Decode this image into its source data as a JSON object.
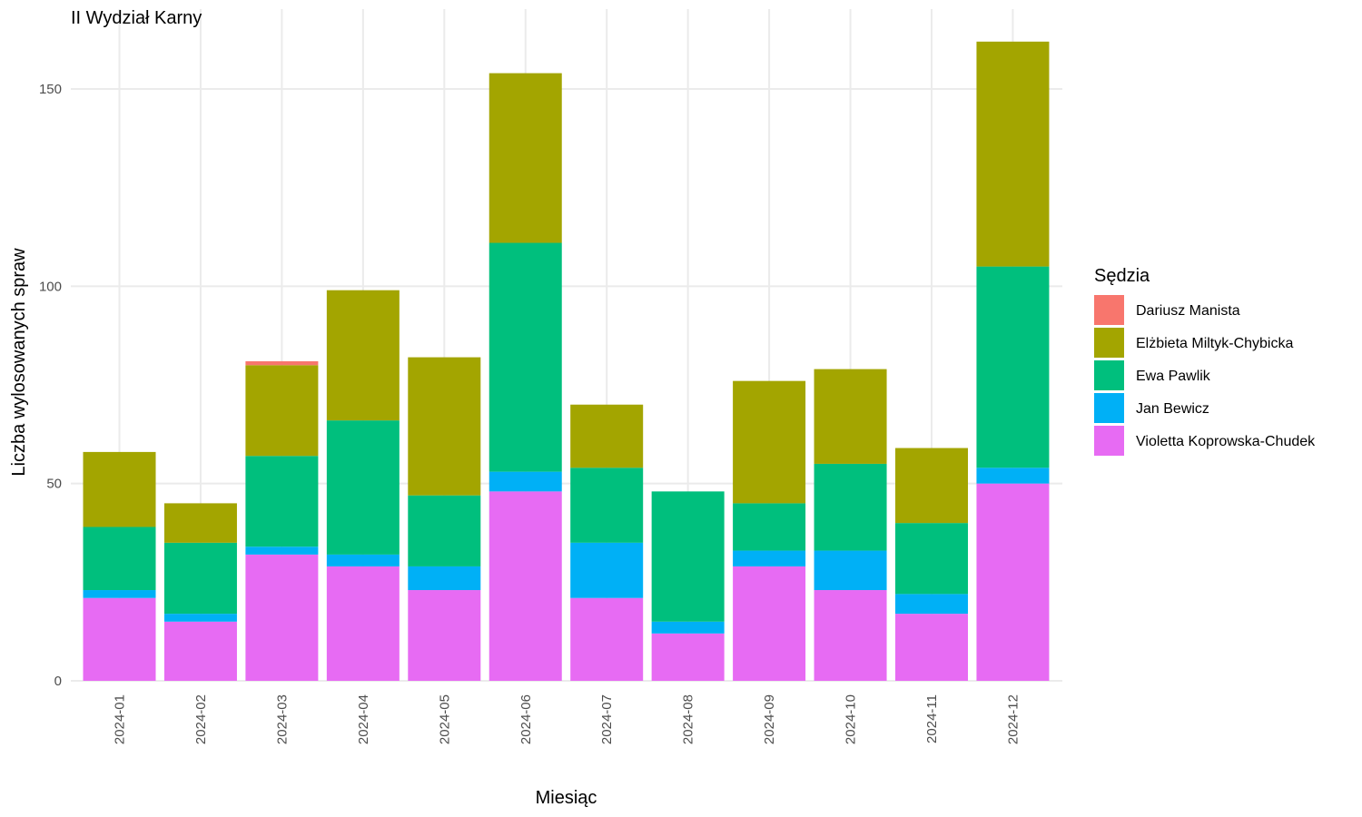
{
  "chart_data": {
    "type": "bar",
    "stacked": true,
    "title": "II Wydział Karny",
    "xlabel": "Miesiąc",
    "ylabel": "Liczba wylosowanych spraw",
    "ylim": [
      0,
      165
    ],
    "y_ticks": [
      0,
      50,
      100,
      150
    ],
    "grid": true,
    "legend_title": "Sędzia",
    "legend_position": "right",
    "categories": [
      "2024-01",
      "2024-02",
      "2024-03",
      "2024-04",
      "2024-05",
      "2024-06",
      "2024-07",
      "2024-08",
      "2024-09",
      "2024-10",
      "2024-11",
      "2024-12"
    ],
    "stack_order": [
      "Violetta Koprowska-Chudek",
      "Jan Bewicz",
      "Ewa Pawlik",
      "Elżbieta Miltyk-Chybicka",
      "Dariusz Manista"
    ],
    "series": [
      {
        "name": "Dariusz Manista",
        "color": "#F8766D",
        "values": [
          0,
          0,
          1,
          0,
          0,
          0,
          0,
          0,
          0,
          0,
          0,
          0
        ]
      },
      {
        "name": "Elżbieta Miltyk-Chybicka",
        "color": "#A3A500",
        "values": [
          19,
          10,
          23,
          33,
          35,
          43,
          16,
          0,
          31,
          24,
          19,
          57
        ]
      },
      {
        "name": "Ewa Pawlik",
        "color": "#00BF7D",
        "values": [
          16,
          18,
          23,
          34,
          18,
          58,
          19,
          33,
          12,
          22,
          18,
          51
        ]
      },
      {
        "name": "Jan Bewicz",
        "color": "#00B0F6",
        "values": [
          2,
          2,
          2,
          3,
          6,
          5,
          14,
          3,
          4,
          10,
          5,
          4
        ]
      },
      {
        "name": "Violetta Koprowska-Chudek",
        "color": "#E76BF3",
        "values": [
          21,
          15,
          32,
          29,
          23,
          48,
          21,
          12,
          29,
          23,
          17,
          50
        ]
      }
    ]
  }
}
